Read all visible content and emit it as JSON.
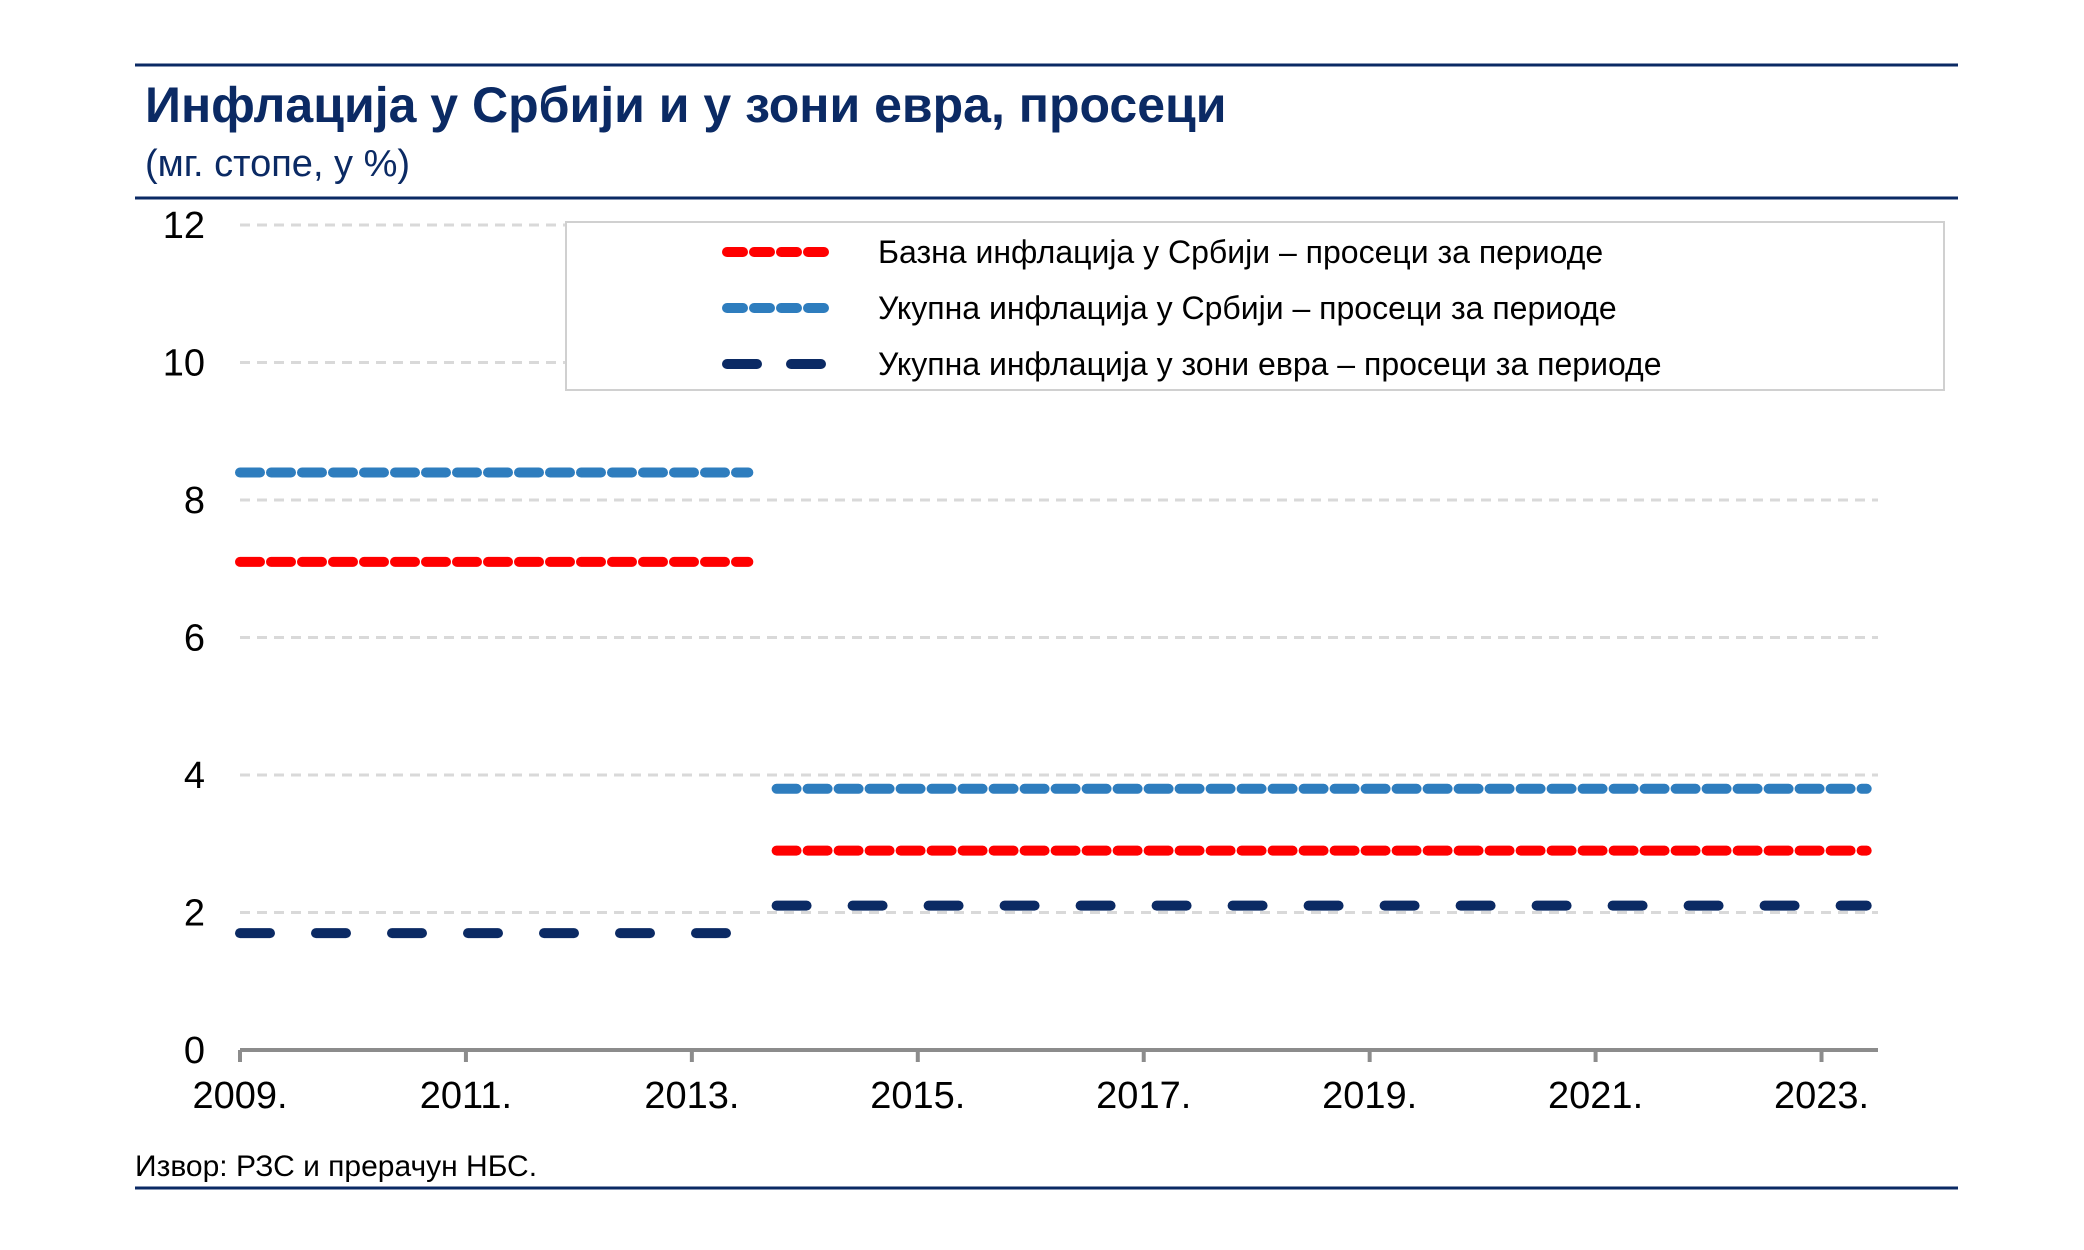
{
  "title": "Инфлација у Србији и у зони евра, просеци",
  "subtitle": "(мг. стопе, у %)",
  "source": "Извор: РЗС и прерачун НБС.",
  "chart_data": {
    "type": "line",
    "x_tick_labels": [
      "2009.",
      "2011.",
      "2013.",
      "2015.",
      "2017.",
      "2019.",
      "2021.",
      "2023."
    ],
    "y_tick_labels": [
      "0",
      "2",
      "4",
      "6",
      "8",
      "10",
      "12"
    ],
    "xlim": [
      2009,
      2023.5
    ],
    "ylim": [
      0,
      12
    ],
    "grid": true,
    "legend_position": "top-right",
    "series": [
      {
        "name": "Базна инфлација у Србији – просеци за периоде",
        "color": "#ff0000",
        "dash": "short",
        "segments": [
          {
            "x": [
              2009,
              2013.5
            ],
            "y": 7.1
          },
          {
            "x": [
              2013.75,
              2023.4
            ],
            "y": 2.9
          }
        ]
      },
      {
        "name": "Укупна инфлација у Србији – просеци за периоде",
        "color": "#2e7dbe",
        "dash": "short",
        "segments": [
          {
            "x": [
              2009,
              2013.5
            ],
            "y": 8.4
          },
          {
            "x": [
              2013.75,
              2023.4
            ],
            "y": 3.8
          }
        ]
      },
      {
        "name": "Укупна инфлација у зони евра – просеци за периоде",
        "color": "#0b2a64",
        "dash": "long",
        "segments": [
          {
            "x": [
              2009,
              2013.5
            ],
            "y": 1.7
          },
          {
            "x": [
              2013.75,
              2023.4
            ],
            "y": 2.1
          }
        ]
      }
    ]
  }
}
